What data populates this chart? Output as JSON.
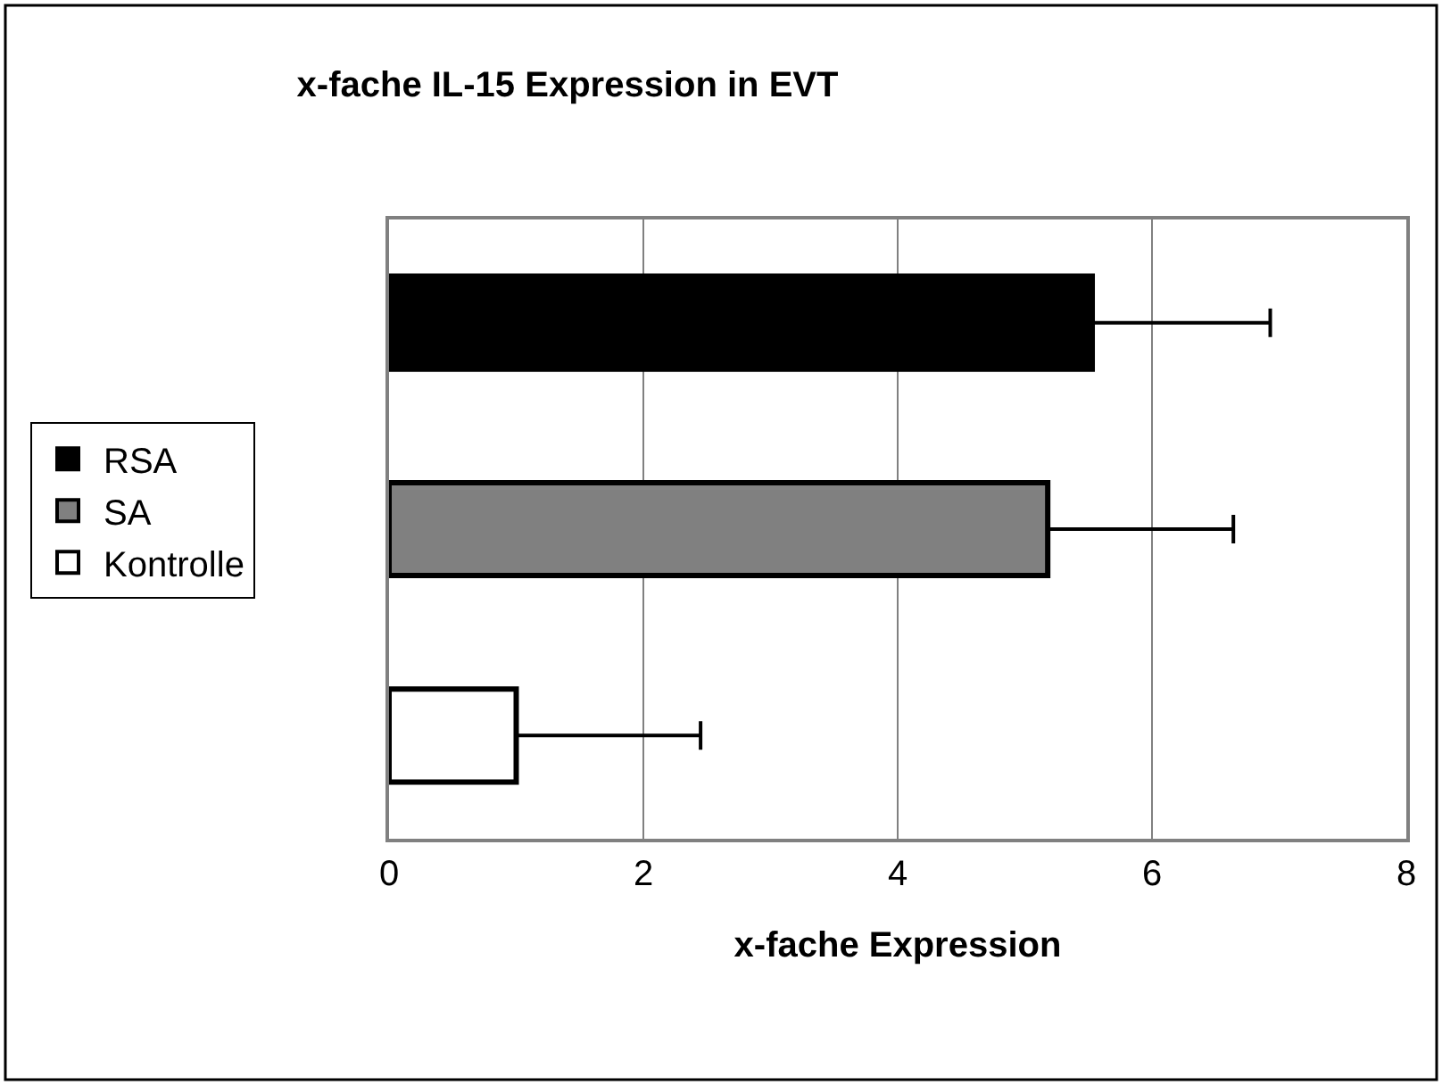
{
  "chart_data": {
    "type": "bar",
    "orientation": "horizontal",
    "title": "x-fache IL-15 Expression in EVT",
    "xlabel": "x-fache Expression",
    "categories": [
      null
    ],
    "series": [
      {
        "name": "RSA",
        "color": "#000000",
        "values": [
          5.53
        ],
        "errors": [
          [
            5.53,
            6.93
          ]
        ]
      },
      {
        "name": "SA",
        "color": "#808080",
        "values": [
          5.18
        ],
        "errors": [
          [
            5.18,
            6.64
          ]
        ]
      },
      {
        "name": "Kontrolle",
        "color": "#ffffff",
        "values": [
          1.0
        ],
        "errors": [
          [
            1.0,
            2.45
          ]
        ]
      }
    ],
    "xlim": [
      0,
      8
    ],
    "xticks": [
      0,
      2,
      4,
      6,
      8
    ],
    "grid": "x",
    "legend": "left"
  }
}
